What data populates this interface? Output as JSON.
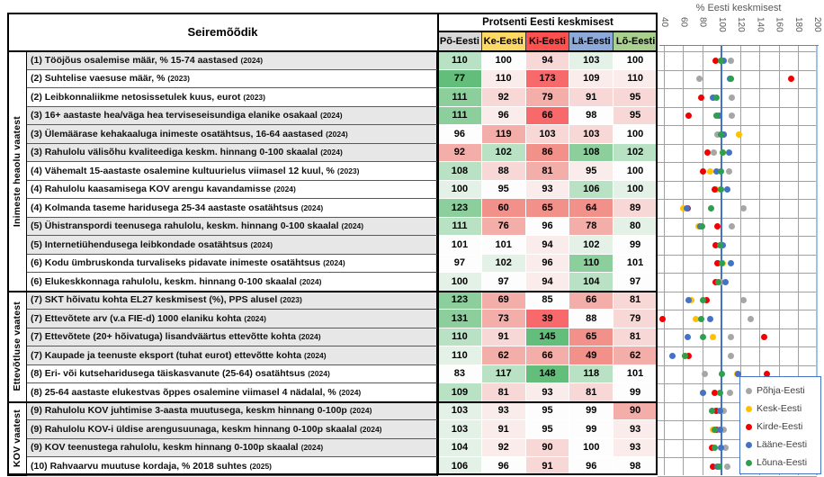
{
  "table": {
    "corner_header": "Seiremõõdik",
    "value_header": "Protsenti Eesti keskmisest",
    "region_columns": [
      {
        "label": "Põ-Eesti",
        "color": "#d9d9d9"
      },
      {
        "label": "Ke-Eesti",
        "color": "#ffd966"
      },
      {
        "label": "Ki-Eesti",
        "color": "#ff5050"
      },
      {
        "label": "Lä-Eesti",
        "color": "#8eaadb"
      },
      {
        "label": "Lõ-Eesti",
        "color": "#a9d08e"
      }
    ],
    "sections": [
      {
        "label": "Inimeste heaolu vaatest",
        "row_count": 13
      },
      {
        "label": "Ettevõtluse vaatest",
        "row_count": 6
      },
      {
        "label": "KOV vaatest",
        "row_count": 4
      }
    ],
    "palette": {
      "G4": "#63be7b",
      "G3": "#8ccf9d",
      "G2": "#b9e1c3",
      "G1": "#e3f1e7",
      "W": "#fdfdfd",
      "P1": "#fbecec",
      "P2": "#f8d8d7",
      "P3": "#f4aeaa",
      "P4": "#f2908a",
      "R": "#f8696b"
    },
    "rows": [
      {
        "label": "(1) Tööjõus osalemise määr, % 15-74 aastased",
        "year": "2024",
        "shaded": true,
        "values": [
          110,
          100,
          94,
          103,
          100
        ],
        "colors": [
          "G2",
          "W",
          "P2",
          "G1",
          "W"
        ]
      },
      {
        "label": "(2) Suhtelise vaesuse määr, %",
        "year": "2023",
        "shaded": false,
        "values": [
          77,
          110,
          173,
          109,
          110
        ],
        "colors": [
          "G4",
          "P1",
          "R",
          "P1",
          "P1"
        ]
      },
      {
        "label": "(2) Leibkonnaliikme netosissetulek kuus, eurot",
        "year": "2023",
        "shaded": false,
        "values": [
          111,
          92,
          79,
          91,
          95
        ],
        "colors": [
          "G3",
          "P2",
          "P3",
          "P2",
          "P2"
        ]
      },
      {
        "label": "(3) 16+ aastaste hea/väga hea terviseseisundiga elanike osakaal",
        "year": "2024",
        "shaded": true,
        "values": [
          111,
          96,
          66,
          98,
          95
        ],
        "colors": [
          "G3",
          "P1",
          "R",
          "W",
          "P2"
        ]
      },
      {
        "label": "(3) Ülemäärase kehakaaluga inimeste osatähtsus, 16-64 aastased",
        "year": "2024",
        "shaded": true,
        "values": [
          96,
          119,
          103,
          103,
          100
        ],
        "colors": [
          "W",
          "P3",
          "P2",
          "P2",
          "W"
        ]
      },
      {
        "label": "(3) Rahulolu välisõhu kvaliteediga keskm. hinnang 0-100 skaalal",
        "year": "2024",
        "shaded": true,
        "values": [
          92,
          102,
          86,
          108,
          102
        ],
        "colors": [
          "P3",
          "G2",
          "P4",
          "G3",
          "G2"
        ]
      },
      {
        "label": "(4) Vähemalt 15-aastaste osalemine kultuurielus viimasel 12 kuul, %",
        "year": "2023",
        "shaded": false,
        "values": [
          108,
          88,
          81,
          95,
          100
        ],
        "colors": [
          "G2",
          "P2",
          "P3",
          "P1",
          "W"
        ]
      },
      {
        "label": "(4) Rahulolu kaasamisega KOV arengu kavandamisse",
        "year": "2024",
        "shaded": false,
        "values": [
          100,
          95,
          93,
          106,
          100
        ],
        "colors": [
          "G1",
          "W",
          "P1",
          "G2",
          "G1"
        ]
      },
      {
        "label": "(4) Kolmanda taseme haridusega 25-34 aastaste osatähtsus",
        "year": "2024",
        "shaded": false,
        "values": [
          123,
          60,
          65,
          64,
          89
        ],
        "colors": [
          "G3",
          "P4",
          "P4",
          "P4",
          "P2"
        ]
      },
      {
        "label": "(5) Ühistranspordi teenusega rahulolu, keskm. hinnang 0-100 skaalal",
        "year": "2024",
        "shaded": true,
        "values": [
          111,
          76,
          96,
          78,
          80
        ],
        "colors": [
          "G2",
          "P3",
          "W",
          "P3",
          "G1"
        ]
      },
      {
        "label": "(5) Internetiühendusega leibkondade osatähtsus",
        "year": "2024",
        "shaded": true,
        "values": [
          101,
          101,
          94,
          102,
          99
        ],
        "colors": [
          "W",
          "W",
          "P1",
          "G1",
          "W"
        ]
      },
      {
        "label": "(6) Kodu ümbruskonda turvaliseks pidavate inimeste osatähtsus",
        "year": "2024",
        "shaded": false,
        "values": [
          97,
          102,
          96,
          110,
          101
        ],
        "colors": [
          "W",
          "G1",
          "P1",
          "G3",
          "W"
        ]
      },
      {
        "label": "(6) Elukeskkonnaga rahulolu, keskm. hinnang 0-100 skaalal",
        "year": "2024",
        "shaded": false,
        "values": [
          100,
          97,
          94,
          104,
          97
        ],
        "colors": [
          "G1",
          "W",
          "P1",
          "G2",
          "W"
        ]
      },
      {
        "label": "(7) SKT hõivatu kohta EL27 keskmisest (%), PPS alusel",
        "year": "2023",
        "shaded": true,
        "values": [
          123,
          69,
          85,
          66,
          81
        ],
        "colors": [
          "G3",
          "P3",
          "W",
          "P3",
          "P2"
        ]
      },
      {
        "label": "(7) Ettevõtete arv (v.a FIE-d) 1000 elaniku kohta",
        "year": "2024",
        "shaded": true,
        "values": [
          131,
          73,
          39,
          88,
          79
        ],
        "colors": [
          "G3",
          "P3",
          "R",
          "W",
          "P2"
        ]
      },
      {
        "label": "(7) Ettevõtete (20+ hõivatuga) lisandväärtus ettevõtte kohta",
        "year": "2024",
        "shaded": true,
        "values": [
          110,
          91,
          145,
          65,
          81
        ],
        "colors": [
          "G2",
          "P2",
          "G4",
          "P4",
          "P2"
        ]
      },
      {
        "label": "(7) Kaupade ja teenuste eksport (tuhat eurot) ettevõtte kohta",
        "year": "2024",
        "shaded": true,
        "values": [
          110,
          62,
          66,
          49,
          62
        ],
        "colors": [
          "G1",
          "P3",
          "P3",
          "P4",
          "P3"
        ]
      },
      {
        "label": "(8) Eri- või kutseharidusega täiskasvanute (25-64) osatähtsus",
        "year": "2024",
        "shaded": false,
        "values": [
          83,
          117,
          148,
          118,
          101
        ],
        "colors": [
          "W",
          "G2",
          "G4",
          "G2",
          "W"
        ]
      },
      {
        "label": "(8) 25-64 aastaste elukestvas õppes osalemine viimasel 4 nädalal, %",
        "year": "2024",
        "shaded": false,
        "values": [
          109,
          81,
          93,
          81,
          99
        ],
        "colors": [
          "G2",
          "P2",
          "P1",
          "P2",
          "W"
        ]
      },
      {
        "label": "(9) Rahulolu KOV juhtimise 3-aasta muutusega, keskm hinnang 0-100p",
        "year": "2024",
        "shaded": true,
        "values": [
          103,
          93,
          95,
          99,
          90
        ],
        "colors": [
          "G1",
          "P1",
          "W",
          "W",
          "P3"
        ]
      },
      {
        "label": "(9) Rahulolu KOV-i üldise arengusuunaga, keskm hinnang 0-100p skaalal",
        "year": "2024",
        "shaded": true,
        "values": [
          103,
          91,
          95,
          99,
          93
        ],
        "colors": [
          "G1",
          "P1",
          "W",
          "W",
          "P1"
        ]
      },
      {
        "label": "(9) KOV teenustega rahulolu, keskm hinnang 0-100p skaalal",
        "year": "2024",
        "shaded": true,
        "values": [
          104,
          92,
          90,
          100,
          93
        ],
        "colors": [
          "G1",
          "P1",
          "P2",
          "W",
          "P1"
        ]
      },
      {
        "label": "(10) Rahvaarvu muutuse kordaja, % 2018 suhtes",
        "year": "2025",
        "shaded": false,
        "values": [
          106,
          96,
          91,
          96,
          98
        ],
        "colors": [
          "G1",
          "W",
          "P2",
          "W",
          "W"
        ]
      }
    ]
  },
  "chart": {
    "title": "% Eesti keskmisest",
    "xticks": [
      40,
      60,
      80,
      100,
      120,
      140,
      160,
      180,
      200
    ],
    "reference_value": 100,
    "legend": [
      {
        "label": "Põhja-Eesti",
        "color": "#a6a6a6"
      },
      {
        "label": "Kesk-Eesti",
        "color": "#ffc000"
      },
      {
        "label": "Kirde-Eesti",
        "color": "#f20000"
      },
      {
        "label": "Lääne-Eesti",
        "color": "#4472c4"
      },
      {
        "label": "Lõuna-Eesti",
        "color": "#2e9e50"
      }
    ]
  },
  "chart_data": {
    "type": "scatter",
    "title": "% Eesti keskmisest",
    "xlabel": "% Eesti keskmisest",
    "xlim": [
      40,
      200
    ],
    "xticks": [
      40,
      60,
      80,
      100,
      120,
      140,
      160,
      180,
      200
    ],
    "x_reference_line": 100,
    "grid": true,
    "legend_position": "bottom-right",
    "categories": [
      "(1) Tööjõus osalemise määr, % 15-74 aastased (2024)",
      "(2) Suhtelise vaesuse määr, % (2023)",
      "(2) Leibkonnaliikme netosissetulek kuus, eurot (2023)",
      "(3) 16+ aastaste hea/väga hea terviseseisundiga elanike osakaal (2024)",
      "(3) Ülemäärase kehakaaluga inimeste osatähtsus, 16-64 aastased (2024)",
      "(3) Rahulolu välisõhu kvaliteediga keskm. hinnang 0-100 skaalal (2024)",
      "(4) Vähemalt 15-aastaste osalemine kultuurielus viimasel 12 kuul, % (2023)",
      "(4) Rahulolu kaasamisega KOV arengu kavandamisse (2024)",
      "(4) Kolmanda taseme haridusega 25-34 aastaste osatähtsus (2024)",
      "(5) Ühistranspordi teenusega rahulolu, keskm. hinnang 0-100 skaalal (2024)",
      "(5) Internetiühendusega leibkondade osatähtsus (2024)",
      "(6) Kodu ümbruskonda turvaliseks pidavate inimeste osatähtsus (2024)",
      "(6) Elukeskkonnaga rahulolu, keskm. hinnang 0-100 skaalal (2024)",
      "(7) SKT hõivatu kohta EL27 keskmisest (%), PPS alusel (2023)",
      "(7) Ettevõtete arv (v.a FIE-d) 1000 elaniku kohta (2024)",
      "(7) Ettevõtete (20+ hõivatuga) lisandväärtus ettevõtte kohta (2024)",
      "(7) Kaupade ja teenuste eksport (tuhat eurot) ettevõtte kohta (2024)",
      "(8) Eri- või kutseharidusega täiskasvanute (25-64) osatähtsus (2024)",
      "(8) 25-64 aastaste elukestvas õppes osalemine viimasel 4 nädalal, % (2024)",
      "(9) Rahulolu KOV juhtimise 3-aasta muutusega, keskm hinnang 0-100p (2024)",
      "(9) Rahulolu KOV-i üldise arengusuunaga, keskm hinnang 0-100p skaalal (2024)",
      "(9) KOV teenustega rahulolu, keskm hinnang 0-100p skaalal (2024)",
      "(10) Rahvaarvu muutuse kordaja, % 2018 suhtes (2025)"
    ],
    "series": [
      {
        "name": "Põhja-Eesti",
        "color": "#a6a6a6",
        "values": [
          110,
          77,
          111,
          111,
          96,
          92,
          108,
          100,
          123,
          111,
          101,
          97,
          100,
          123,
          131,
          110,
          110,
          83,
          109,
          103,
          103,
          104,
          106
        ]
      },
      {
        "name": "Kesk-Eesti",
        "color": "#ffc000",
        "values": [
          100,
          110,
          92,
          96,
          119,
          102,
          88,
          95,
          60,
          76,
          101,
          102,
          97,
          69,
          73,
          91,
          62,
          117,
          81,
          93,
          91,
          92,
          96
        ]
      },
      {
        "name": "Kirde-Eesti",
        "color": "#f20000",
        "values": [
          94,
          173,
          79,
          66,
          103,
          86,
          81,
          93,
          65,
          96,
          94,
          96,
          94,
          85,
          39,
          145,
          66,
          148,
          93,
          95,
          95,
          90,
          91
        ]
      },
      {
        "name": "Lääne-Eesti",
        "color": "#4472c4",
        "values": [
          103,
          109,
          91,
          98,
          103,
          108,
          95,
          106,
          64,
          78,
          102,
          110,
          104,
          66,
          88,
          65,
          49,
          118,
          81,
          99,
          99,
          100,
          96
        ]
      },
      {
        "name": "Lõuna-Eesti",
        "color": "#2e9e50",
        "values": [
          100,
          110,
          95,
          95,
          100,
          102,
          100,
          100,
          89,
          80,
          99,
          101,
          97,
          81,
          79,
          81,
          62,
          101,
          99,
          90,
          93,
          93,
          98
        ]
      }
    ]
  }
}
